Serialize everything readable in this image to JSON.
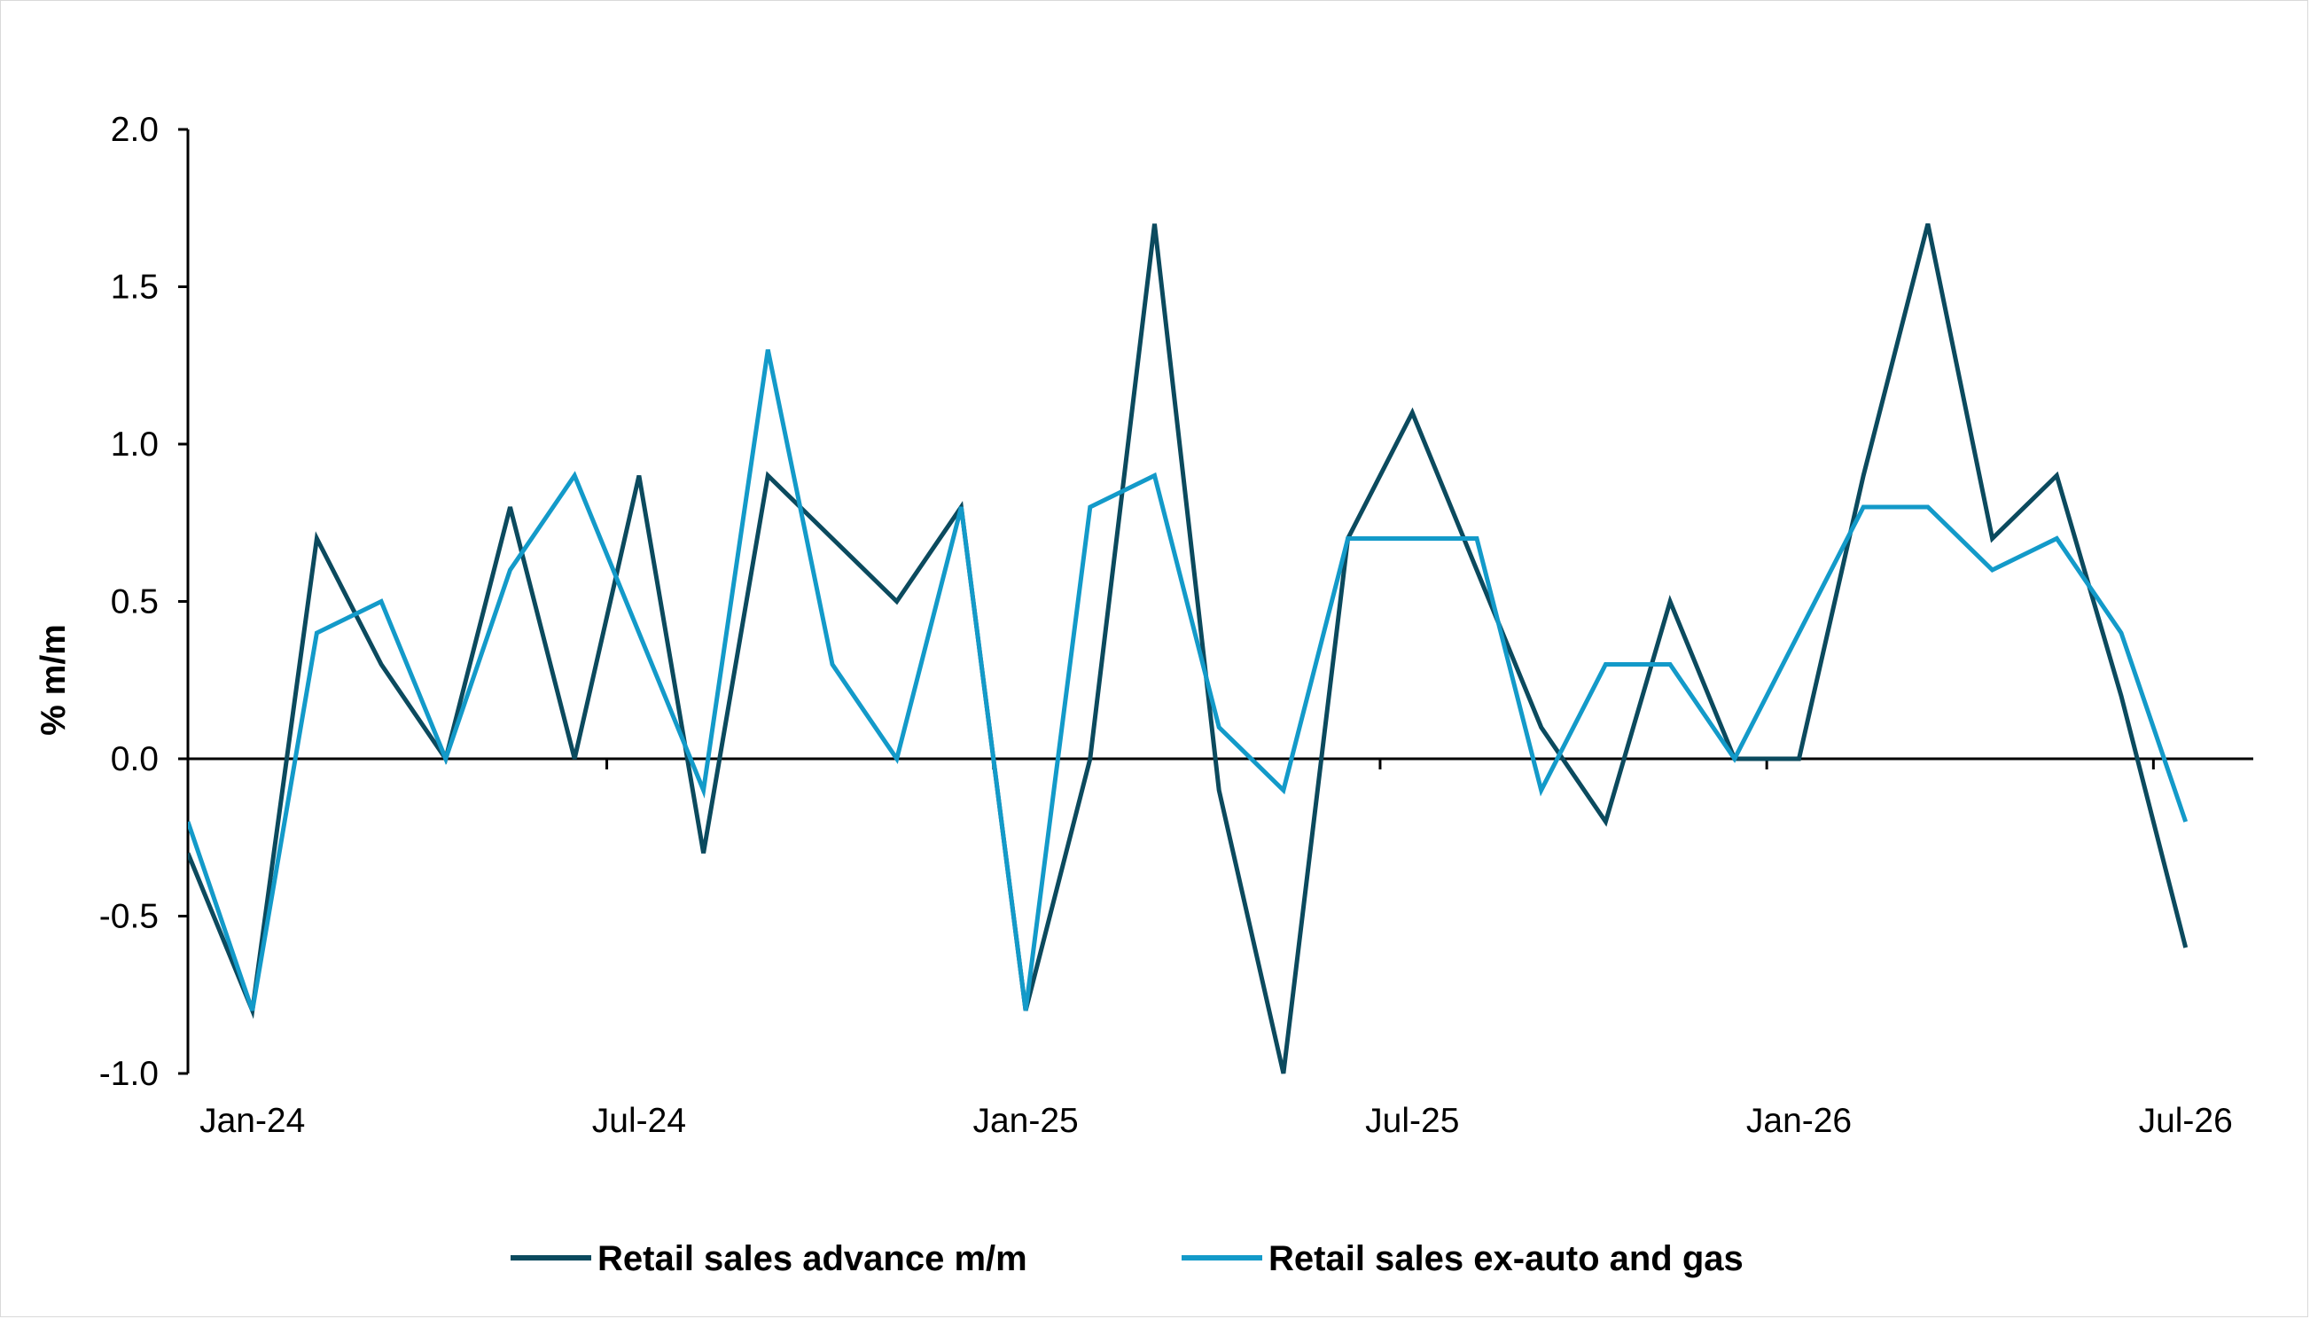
{
  "chart_data": {
    "type": "line",
    "title": "",
    "xlabel": "",
    "ylabel": "% m/m",
    "ylim": [
      -1.0,
      2.0
    ],
    "yticks": [
      "2.0",
      "1.5",
      "1.0",
      "0.5",
      "0.0",
      "-0.5",
      "-1.0"
    ],
    "ytick_values": [
      2.0,
      1.5,
      1.0,
      0.5,
      0.0,
      -0.5,
      -1.0
    ],
    "x_tick_labels": [
      "Jan-24",
      "Jul-24",
      "Jan-25",
      "Jul-25",
      "Jan-26",
      "Jul-26"
    ],
    "x": [
      "Dec-23",
      "Jan-24",
      "Feb-24",
      "Mar-24",
      "Apr-24",
      "May-24",
      "Jun-24",
      "Jul-24",
      "Aug-24",
      "Sep-24",
      "Oct-24",
      "Nov-24",
      "Dec-24",
      "Jan-25",
      "Feb-25",
      "Mar-25",
      "Apr-25",
      "May-25",
      "Jun-25",
      "Jul-25",
      "Aug-25",
      "Sep-25",
      "Oct-25",
      "Nov-25",
      "Dec-25",
      "Jan-26",
      "Feb-26",
      "Mar-26",
      "Apr-26",
      "May-26",
      "Jun-26",
      "Jul-26"
    ],
    "grid": false,
    "legend_position": "bottom",
    "series": [
      {
        "name": "Retail sales advance m/m",
        "color": "#0b4a5e",
        "values": [
          -0.3,
          -0.8,
          0.7,
          0.3,
          0.0,
          0.8,
          0.0,
          0.9,
          -0.3,
          0.9,
          0.7,
          0.5,
          0.8,
          -0.8,
          0.0,
          1.7,
          -0.1,
          -1.0,
          0.7,
          1.1,
          0.6,
          0.1,
          -0.2,
          0.5,
          0.0,
          0.0,
          0.9,
          1.7,
          0.7,
          0.9,
          0.2,
          -0.6
        ]
      },
      {
        "name": "Retail sales ex-auto and gas",
        "color": "#139ac9",
        "values": [
          -0.2,
          -0.8,
          0.4,
          0.5,
          0.0,
          0.6,
          0.9,
          0.4,
          -0.1,
          1.3,
          0.3,
          0.0,
          0.8,
          -0.8,
          0.8,
          0.9,
          0.1,
          -0.1,
          0.7,
          0.7,
          0.7,
          -0.1,
          0.3,
          0.3,
          0.0,
          0.4,
          0.8,
          0.8,
          0.6,
          0.7,
          0.4,
          -0.2
        ]
      }
    ]
  }
}
